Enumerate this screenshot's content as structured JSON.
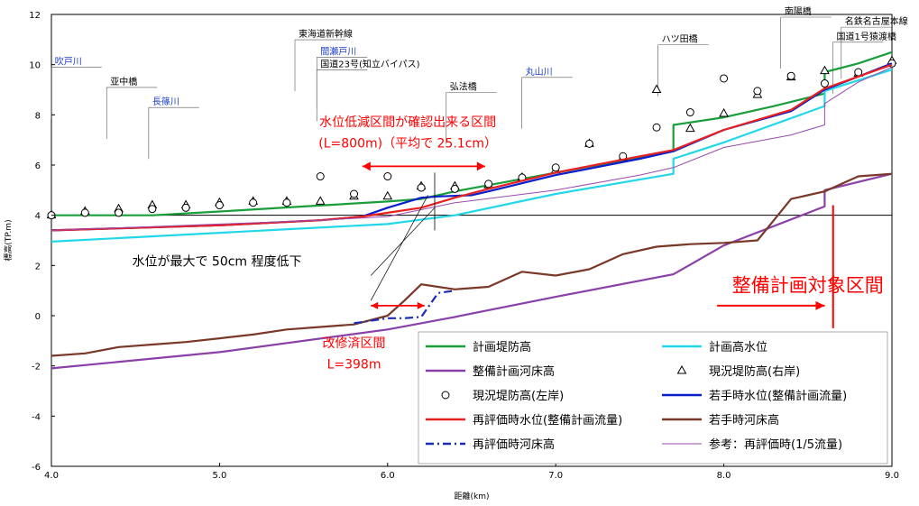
{
  "chart_data": {
    "type": "line",
    "xlabel": "距離(km)",
    "ylabel": "標高(TP.m)",
    "xlim": [
      4.0,
      9.0
    ],
    "ylim": [
      -6,
      12
    ],
    "x_ticks": [
      "4.0",
      "5.0",
      "6.0",
      "7.0",
      "8.0",
      "9.0"
    ],
    "y_ticks": [
      "-6",
      "-4",
      "-2",
      "0",
      "2",
      "4",
      "6",
      "8",
      "10",
      "12"
    ],
    "grid": false,
    "reference_line_y": 4,
    "places": [
      {
        "name": "吹戸川",
        "x": 4.02,
        "y": 10.0,
        "color": "#1a3fc8"
      },
      {
        "name": "亚中橋",
        "x": 4.35,
        "y": 9.2,
        "color": "#000000"
      },
      {
        "name": "長篠川",
        "x": 4.6,
        "y": 8.4,
        "color": "#1a3fc8"
      },
      {
        "name": "東海道新幹線",
        "x": 5.47,
        "y": 11.1,
        "color": "#000000"
      },
      {
        "name": "間瀬戸川",
        "x": 5.6,
        "y": 10.4,
        "color": "#1a3fc8"
      },
      {
        "name": "国道23号(知立バイパス)",
        "x": 5.6,
        "y": 9.9,
        "color": "#000000"
      },
      {
        "name": "弘法橋",
        "x": 6.37,
        "y": 9.0,
        "color": "#000000"
      },
      {
        "name": "丸山川",
        "x": 6.82,
        "y": 9.6,
        "color": "#1a3fc8"
      },
      {
        "name": "ハツ田橋",
        "x": 7.63,
        "y": 10.9,
        "color": "#000000"
      },
      {
        "name": "南陽橋",
        "x": 8.36,
        "y": 12.0,
        "color": "#000000"
      },
      {
        "name": "名鉄名古屋本線",
        "x": 8.72,
        "y": 11.6,
        "color": "#000000"
      },
      {
        "name": "国道1号猿渡橋",
        "x": 8.67,
        "y": 11.0,
        "color": "#000000"
      }
    ],
    "annotations": {
      "section_title": "水位低減区間が確認出来る区間",
      "section_detail": "(L=800m)（平均で 25.1cm）",
      "max_drop": "水位が最大で 50cm 程度低下",
      "plan_target": "整備計画対象区間",
      "improved": "改修済区間",
      "improved_length": "L=398m"
    },
    "series": [
      {
        "name": "計画堤防高",
        "color": "#1a9e3a",
        "style": "line",
        "x": [
          4.0,
          4.6,
          5.0,
          5.5,
          6.0,
          6.2,
          6.4,
          6.6,
          7.0,
          7.5,
          7.7,
          7.7,
          8.0,
          8.3,
          8.6,
          8.6,
          8.8,
          9.0
        ],
        "y": [
          4.0,
          4.0,
          4.15,
          4.35,
          4.55,
          4.65,
          4.95,
          5.2,
          5.7,
          6.3,
          6.55,
          7.6,
          7.9,
          8.35,
          8.85,
          9.7,
          10.05,
          10.5
        ]
      },
      {
        "name": "計画高水位",
        "color": "#22d8e8",
        "style": "line",
        "x": [
          4.0,
          5.0,
          6.0,
          6.4,
          7.0,
          7.7,
          7.7,
          8.0,
          8.6,
          8.6,
          9.0
        ],
        "y": [
          2.95,
          3.3,
          3.65,
          4.0,
          4.85,
          5.65,
          6.25,
          6.9,
          8.35,
          8.95,
          9.8
        ]
      },
      {
        "name": "整備計画河床高",
        "color": "#8a40a8",
        "style": "line",
        "x": [
          4.0,
          5.0,
          6.0,
          6.4,
          7.0,
          7.7,
          8.0,
          8.6,
          8.6,
          9.0
        ],
        "y": [
          -2.1,
          -1.45,
          -0.55,
          -0.05,
          0.75,
          1.65,
          2.8,
          4.35,
          5.0,
          5.65
        ]
      },
      {
        "name": "現況堤防高(右岸)",
        "color": "#000000",
        "style": "triangle",
        "x": [
          4.0,
          4.2,
          4.4,
          4.6,
          4.8,
          5.0,
          5.2,
          5.4,
          5.6,
          5.8,
          6.0,
          6.2,
          6.4,
          6.6,
          6.8,
          7.0,
          7.2,
          7.4,
          7.6,
          7.8,
          8.0,
          8.2,
          8.4,
          8.6,
          8.8,
          9.0
        ],
        "y": [
          4.0,
          4.15,
          4.25,
          4.4,
          4.4,
          4.5,
          4.55,
          4.55,
          4.55,
          4.75,
          4.75,
          5.15,
          5.15,
          5.2,
          5.5,
          5.8,
          6.85,
          6.3,
          9.0,
          7.45,
          8.05,
          8.8,
          9.5,
          9.75,
          9.65,
          10.15
        ]
      },
      {
        "name": "現況堤防高(左岸)",
        "color": "#000000",
        "style": "circle",
        "x": [
          4.0,
          4.2,
          4.4,
          4.6,
          4.8,
          5.0,
          5.2,
          5.4,
          5.6,
          5.8,
          6.0,
          6.2,
          6.4,
          6.6,
          6.8,
          7.0,
          7.2,
          7.4,
          7.6,
          7.8,
          8.0,
          8.2,
          8.4,
          8.6,
          8.8,
          9.0
        ],
        "y": [
          4.0,
          4.1,
          4.1,
          4.25,
          4.3,
          4.4,
          4.5,
          4.5,
          5.55,
          4.85,
          5.55,
          5.1,
          5.05,
          5.25,
          5.5,
          5.9,
          6.85,
          6.35,
          7.5,
          8.1,
          9.45,
          8.95,
          9.55,
          9.25,
          9.7,
          10.05
        ]
      },
      {
        "name": "若手時水位(整備計画流量)",
        "color": "#0a1ecc",
        "style": "line",
        "x": [
          4.0,
          5.0,
          5.6,
          5.85,
          6.0,
          6.2,
          6.3,
          6.5,
          6.6,
          7.0,
          7.5,
          7.7,
          8.0,
          8.4,
          8.6,
          9.0
        ],
        "y": [
          3.4,
          3.6,
          3.8,
          3.95,
          4.3,
          4.7,
          4.75,
          4.8,
          4.95,
          5.6,
          6.25,
          6.55,
          7.4,
          8.15,
          9.0,
          10.05
        ]
      },
      {
        "name": "再評価時水位(整備計画流量)",
        "color": "#e82020",
        "style": "line",
        "x": [
          4.0,
          5.0,
          5.6,
          5.85,
          6.0,
          6.2,
          6.4,
          6.6,
          7.0,
          7.5,
          7.7,
          8.0,
          8.4,
          8.6,
          9.0
        ],
        "y": [
          3.4,
          3.6,
          3.8,
          3.95,
          4.1,
          4.3,
          4.7,
          5.05,
          5.7,
          6.35,
          6.6,
          7.4,
          8.2,
          9.05,
          10.0
        ]
      },
      {
        "name": "若手時河床高",
        "color": "#7a3828",
        "style": "line",
        "x": [
          4.0,
          4.2,
          4.4,
          4.6,
          4.8,
          5.0,
          5.2,
          5.4,
          5.6,
          5.8,
          6.0,
          6.1,
          6.2,
          6.25,
          6.4,
          6.6,
          6.8,
          7.0,
          7.2,
          7.4,
          7.6,
          7.8,
          8.0,
          8.2,
          8.4,
          8.6,
          8.8,
          9.0
        ],
        "y": [
          -1.6,
          -1.5,
          -1.25,
          -1.15,
          -1.05,
          -0.9,
          -0.75,
          -0.55,
          -0.45,
          -0.35,
          0.0,
          0.6,
          1.25,
          1.2,
          1.05,
          1.15,
          1.75,
          1.6,
          1.85,
          2.45,
          2.75,
          2.85,
          2.9,
          3.0,
          4.65,
          4.95,
          5.55,
          5.65
        ]
      },
      {
        "name": "再評価時河床高",
        "color": "#1a2bb8",
        "style": "dashdot",
        "x": [
          5.8,
          6.0,
          6.1,
          6.2,
          6.3,
          6.4
        ],
        "y": [
          -0.3,
          -0.1,
          -0.1,
          -0.05,
          0.9,
          1.0
        ]
      },
      {
        "name": "参考：再評価時(1/5流量)",
        "color": "#9a4ab0",
        "style": "thin",
        "x": [
          4.0,
          4.6,
          5.0,
          5.6,
          6.0,
          6.4,
          7.0,
          7.5,
          7.7,
          8.0,
          8.4,
          8.6,
          8.6,
          8.8,
          9.0
        ],
        "y": [
          3.4,
          3.55,
          3.65,
          3.8,
          3.95,
          4.5,
          5.0,
          5.6,
          5.9,
          6.7,
          7.2,
          7.6,
          8.45,
          9.3,
          9.9
        ]
      }
    ],
    "legend": [
      {
        "name": "計画堤防高",
        "color": "#1a9e3a",
        "style": "line"
      },
      {
        "name": "計画高水位",
        "color": "#22d8e8",
        "style": "line"
      },
      {
        "name": "整備計画河床高",
        "color": "#8a40a8",
        "style": "line"
      },
      {
        "name": "現況堤防高(右岸)",
        "color": "#000000",
        "style": "triangle"
      },
      {
        "name": "現況堤防高(左岸)",
        "color": "#000000",
        "style": "circle"
      },
      {
        "name": "若手時水位(整備計画流量)",
        "color": "#0a1ecc",
        "style": "line"
      },
      {
        "name": "再評価時水位(整備計画流量)",
        "color": "#e82020",
        "style": "line"
      },
      {
        "name": "若手時河床高",
        "color": "#7a3828",
        "style": "line"
      },
      {
        "name": "再評価時河床高",
        "color": "#1a2bb8",
        "style": "dashdot"
      },
      {
        "name": "参考：再評価時(1/5流量)",
        "color": "#9a4ab0",
        "style": "thin"
      }
    ]
  }
}
